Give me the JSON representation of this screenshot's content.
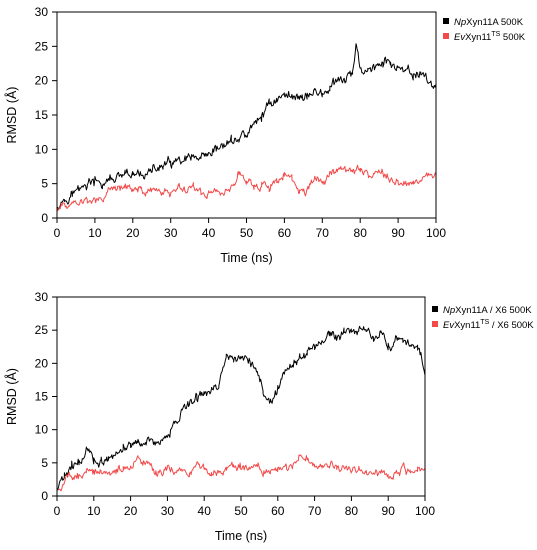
{
  "chart_data": [
    {
      "type": "line",
      "xlabel": "Time (ns)",
      "ylabel": "RMSD  (Å)",
      "xlim": [
        0,
        100
      ],
      "ylim": [
        0,
        30
      ],
      "xticks": [
        0,
        10,
        20,
        30,
        40,
        50,
        60,
        70,
        80,
        90,
        100
      ],
      "yticks": [
        0,
        5,
        10,
        15,
        20,
        25,
        30
      ],
      "legend_position": "top-right",
      "series": [
        {
          "name": "NpXyn11A 500K",
          "legend": {
            "italic": "Np",
            "rest": "Xyn11A 500K",
            "sup": ""
          },
          "color": "#000000",
          "points": [
            [
              0,
              2.0
            ],
            [
              2,
              2.8
            ],
            [
              4,
              3.6
            ],
            [
              6,
              4.2
            ],
            [
              8,
              5.0
            ],
            [
              10,
              5.2
            ],
            [
              12,
              4.8
            ],
            [
              14,
              5.6
            ],
            [
              16,
              5.8
            ],
            [
              18,
              6.0
            ],
            [
              20,
              6.1
            ],
            [
              22,
              6.4
            ],
            [
              24,
              6.6
            ],
            [
              26,
              7.0
            ],
            [
              28,
              7.6
            ],
            [
              30,
              7.9
            ],
            [
              32,
              8.1
            ],
            [
              34,
              8.3
            ],
            [
              36,
              8.6
            ],
            [
              38,
              8.4
            ],
            [
              40,
              8.6
            ],
            [
              42,
              9.8
            ],
            [
              44,
              10.6
            ],
            [
              46,
              11.2
            ],
            [
              48,
              11.6
            ],
            [
              50,
              12.2
            ],
            [
              52,
              13.5
            ],
            [
              54,
              14.8
            ],
            [
              56,
              16.8
            ],
            [
              58,
              17.3
            ],
            [
              60,
              17.8
            ],
            [
              62,
              18.0
            ],
            [
              64,
              17.6
            ],
            [
              66,
              17.9
            ],
            [
              68,
              18.4
            ],
            [
              70,
              18.0
            ],
            [
              72,
              19.0
            ],
            [
              74,
              19.6
            ],
            [
              76,
              20.2
            ],
            [
              78,
              21.0
            ],
            [
              79,
              25.0
            ],
            [
              80,
              21.5
            ],
            [
              82,
              21.8
            ],
            [
              84,
              22.0
            ],
            [
              86,
              22.4
            ],
            [
              88,
              22.8
            ],
            [
              90,
              21.6
            ],
            [
              92,
              21.0
            ],
            [
              94,
              20.8
            ],
            [
              96,
              21.2
            ],
            [
              98,
              20.0
            ],
            [
              100,
              19.0
            ]
          ]
        },
        {
          "name": "EvXyn11TS 500K",
          "legend": {
            "italic": "Ev",
            "rest": "Xyn11",
            "sup": "TS",
            "tail": " 500K"
          },
          "color": "#f24a4a",
          "points": [
            [
              0,
              1.5
            ],
            [
              4,
              2.2
            ],
            [
              8,
              2.4
            ],
            [
              12,
              2.8
            ],
            [
              14,
              4.0
            ],
            [
              16,
              4.4
            ],
            [
              18,
              4.8
            ],
            [
              20,
              4.2
            ],
            [
              22,
              4.6
            ],
            [
              24,
              3.6
            ],
            [
              26,
              4.2
            ],
            [
              28,
              3.8
            ],
            [
              30,
              3.8
            ],
            [
              32,
              4.5
            ],
            [
              34,
              4.1
            ],
            [
              36,
              4.8
            ],
            [
              38,
              3.5
            ],
            [
              40,
              3.6
            ],
            [
              42,
              4.2
            ],
            [
              44,
              3.4
            ],
            [
              46,
              4.6
            ],
            [
              48,
              6.4
            ],
            [
              50,
              5.8
            ],
            [
              52,
              4.6
            ],
            [
              54,
              4.8
            ],
            [
              56,
              4.3
            ],
            [
              58,
              5.5
            ],
            [
              60,
              6.2
            ],
            [
              62,
              5.3
            ],
            [
              64,
              4.1
            ],
            [
              66,
              3.9
            ],
            [
              68,
              5.5
            ],
            [
              70,
              5.2
            ],
            [
              72,
              6.6
            ],
            [
              74,
              7.0
            ],
            [
              76,
              7.2
            ],
            [
              78,
              6.8
            ],
            [
              80,
              7.3
            ],
            [
              82,
              6.6
            ],
            [
              84,
              6.2
            ],
            [
              86,
              6.8
            ],
            [
              88,
              5.5
            ],
            [
              90,
              5.0
            ],
            [
              92,
              5.4
            ],
            [
              94,
              5.6
            ],
            [
              96,
              5.8
            ],
            [
              98,
              6.0
            ],
            [
              100,
              6.2
            ]
          ]
        }
      ]
    },
    {
      "type": "line",
      "xlabel": "Time (ns)",
      "ylabel": "RMSD  (Å)",
      "xlim": [
        0,
        100
      ],
      "ylim": [
        0,
        30
      ],
      "xticks": [
        0,
        10,
        20,
        30,
        40,
        50,
        60,
        70,
        80,
        90,
        100
      ],
      "yticks": [
        0,
        5,
        10,
        15,
        20,
        25,
        30
      ],
      "legend_position": "top-right",
      "series": [
        {
          "name": "NpXyn11A / X6 500K",
          "legend": {
            "italic": "Np",
            "rest": "Xyn11A / X6 500K",
            "sup": ""
          },
          "color": "#000000",
          "points": [
            [
              0,
              1.0
            ],
            [
              2,
              3.0
            ],
            [
              4,
              4.2
            ],
            [
              6,
              5.0
            ],
            [
              8,
              7.0
            ],
            [
              10,
              5.5
            ],
            [
              12,
              5.0
            ],
            [
              14,
              5.4
            ],
            [
              16,
              6.0
            ],
            [
              18,
              7.2
            ],
            [
              20,
              7.8
            ],
            [
              22,
              8.0
            ],
            [
              24,
              8.4
            ],
            [
              26,
              8.5
            ],
            [
              28,
              7.8
            ],
            [
              30,
              8.8
            ],
            [
              32,
              11.0
            ],
            [
              34,
              13.0
            ],
            [
              36,
              13.8
            ],
            [
              38,
              15.0
            ],
            [
              40,
              15.5
            ],
            [
              42,
              16.0
            ],
            [
              44,
              16.5
            ],
            [
              46,
              21.5
            ],
            [
              48,
              20.0
            ],
            [
              50,
              21.0
            ],
            [
              52,
              20.4
            ],
            [
              54,
              19.6
            ],
            [
              56,
              16.0
            ],
            [
              58,
              14.0
            ],
            [
              60,
              16.4
            ],
            [
              62,
              18.2
            ],
            [
              64,
              19.8
            ],
            [
              66,
              20.6
            ],
            [
              68,
              21.8
            ],
            [
              70,
              22.4
            ],
            [
              72,
              23.0
            ],
            [
              74,
              24.0
            ],
            [
              76,
              23.8
            ],
            [
              78,
              24.5
            ],
            [
              80,
              25.0
            ],
            [
              82,
              24.6
            ],
            [
              84,
              25.5
            ],
            [
              86,
              23.8
            ],
            [
              88,
              25.0
            ],
            [
              90,
              22.5
            ],
            [
              92,
              23.5
            ],
            [
              94,
              23.0
            ],
            [
              96,
              22.2
            ],
            [
              98,
              22.8
            ],
            [
              100,
              19.0
            ]
          ]
        },
        {
          "name": "EvXyn11TS / X6 500K",
          "legend": {
            "italic": "Ev",
            "rest": "Xyn11",
            "sup": "TS",
            "tail": " / X6 500K"
          },
          "color": "#f24a4a",
          "points": [
            [
              0,
              1.0
            ],
            [
              4,
              3.0
            ],
            [
              8,
              3.5
            ],
            [
              12,
              3.8
            ],
            [
              16,
              3.6
            ],
            [
              18,
              4.4
            ],
            [
              20,
              4.2
            ],
            [
              22,
              5.4
            ],
            [
              24,
              4.8
            ],
            [
              26,
              4.0
            ],
            [
              28,
              3.6
            ],
            [
              30,
              4.2
            ],
            [
              32,
              3.8
            ],
            [
              34,
              4.0
            ],
            [
              36,
              3.6
            ],
            [
              38,
              4.2
            ],
            [
              40,
              4.0
            ],
            [
              42,
              3.4
            ],
            [
              44,
              4.2
            ],
            [
              46,
              4.0
            ],
            [
              48,
              4.6
            ],
            [
              50,
              4.4
            ],
            [
              52,
              4.0
            ],
            [
              54,
              4.6
            ],
            [
              56,
              3.5
            ],
            [
              58,
              3.6
            ],
            [
              60,
              4.0
            ],
            [
              62,
              4.4
            ],
            [
              64,
              4.2
            ],
            [
              66,
              5.8
            ],
            [
              68,
              5.5
            ],
            [
              70,
              4.6
            ],
            [
              72,
              4.4
            ],
            [
              74,
              4.8
            ],
            [
              76,
              4.4
            ],
            [
              78,
              4.0
            ],
            [
              80,
              4.2
            ],
            [
              82,
              3.8
            ],
            [
              84,
              3.4
            ],
            [
              86,
              3.2
            ],
            [
              88,
              3.6
            ],
            [
              90,
              3.4
            ],
            [
              92,
              3.2
            ],
            [
              94,
              4.0
            ],
            [
              96,
              3.6
            ],
            [
              98,
              4.0
            ],
            [
              100,
              4.0
            ]
          ]
        }
      ]
    }
  ]
}
